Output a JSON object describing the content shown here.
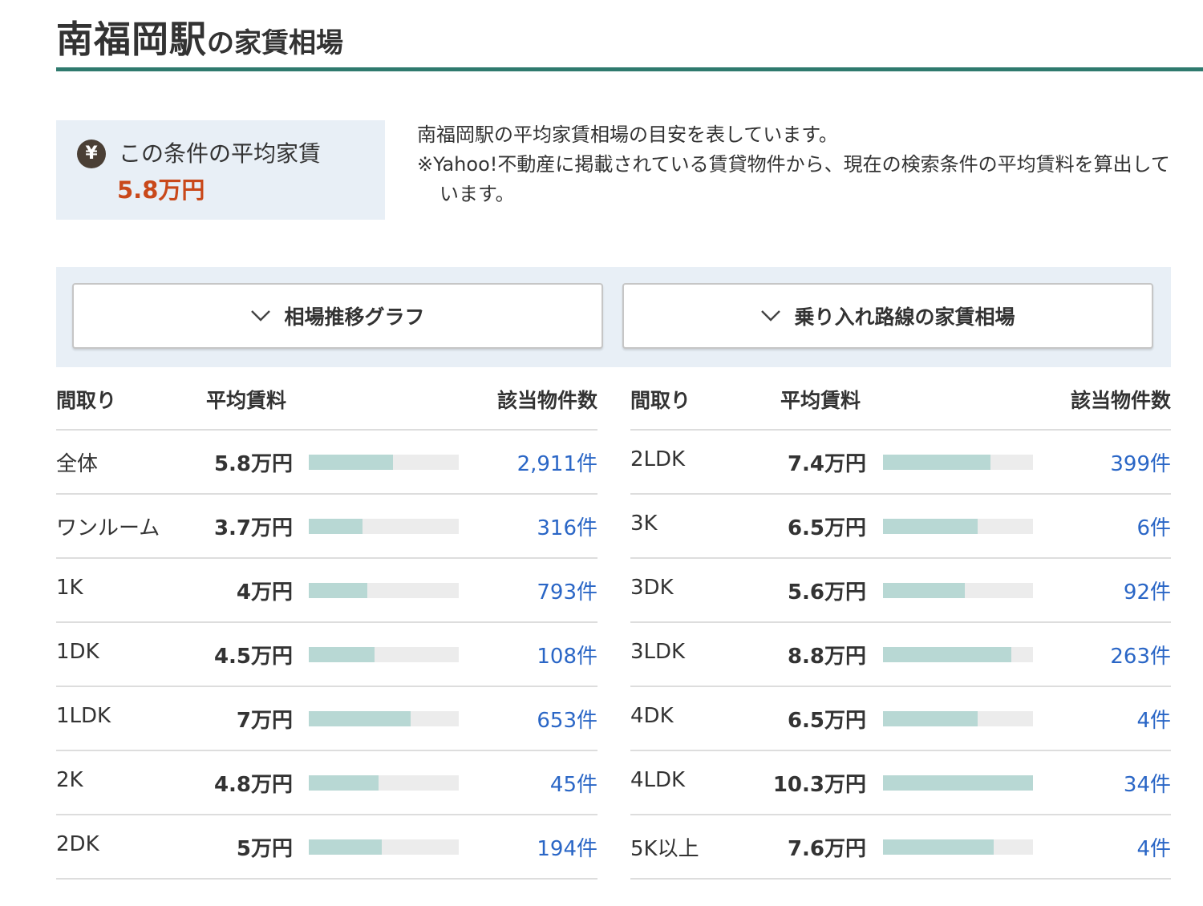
{
  "heading": {
    "station": "南福岡駅",
    "suffix": "の家賃相場"
  },
  "average": {
    "icon": "yen-icon",
    "icon_glyph": "¥",
    "label": "この条件の平均家賃",
    "value": "5.8万円"
  },
  "description": {
    "line1": "南福岡駅の平均家賃相場の目安を表しています。",
    "line2": "※Yahoo!不動産に掲載されている賃貸物件から、現在の検索条件の平均賃料を算出しています。"
  },
  "accordions": [
    {
      "label": "相場推移グラフ",
      "icon": "chevron-down-icon"
    },
    {
      "label": "乗り入れ路線の家賃相場",
      "icon": "chevron-down-icon"
    }
  ],
  "table_headers": {
    "layout": "間取り",
    "rent": "平均賃料",
    "count": "該当物件数"
  },
  "left_rows": [
    {
      "layout": "全体",
      "rent": "5.8万円",
      "rent_value": 5.8,
      "count": "2,911件"
    },
    {
      "layout": "ワンルーム",
      "rent": "3.7万円",
      "rent_value": 3.7,
      "count": "316件"
    },
    {
      "layout": "1K",
      "rent": "4万円",
      "rent_value": 4.0,
      "count": "793件"
    },
    {
      "layout": "1DK",
      "rent": "4.5万円",
      "rent_value": 4.5,
      "count": "108件"
    },
    {
      "layout": "1LDK",
      "rent": "7万円",
      "rent_value": 7.0,
      "count": "653件"
    },
    {
      "layout": "2K",
      "rent": "4.8万円",
      "rent_value": 4.8,
      "count": "45件"
    },
    {
      "layout": "2DK",
      "rent": "5万円",
      "rent_value": 5.0,
      "count": "194件"
    }
  ],
  "right_rows": [
    {
      "layout": "2LDK",
      "rent": "7.4万円",
      "rent_value": 7.4,
      "count": "399件"
    },
    {
      "layout": "3K",
      "rent": "6.5万円",
      "rent_value": 6.5,
      "count": "6件"
    },
    {
      "layout": "3DK",
      "rent": "5.6万円",
      "rent_value": 5.6,
      "count": "92件"
    },
    {
      "layout": "3LDK",
      "rent": "8.8万円",
      "rent_value": 8.8,
      "count": "263件"
    },
    {
      "layout": "4DK",
      "rent": "6.5万円",
      "rent_value": 6.5,
      "count": "4件"
    },
    {
      "layout": "4LDK",
      "rent": "10.3万円",
      "rent_value": 10.3,
      "count": "34件"
    },
    {
      "layout": "5K以上",
      "rent": "7.6万円",
      "rent_value": 7.6,
      "count": "4件"
    }
  ],
  "bar_max_rent": 10.3,
  "colors": {
    "accent_line": "#2f7a6e",
    "price": "#c9481a",
    "link": "#2a66c6",
    "bar_fill": "#b8d8d4",
    "bar_track": "#ececec",
    "panel_bg": "#e8eff6"
  }
}
